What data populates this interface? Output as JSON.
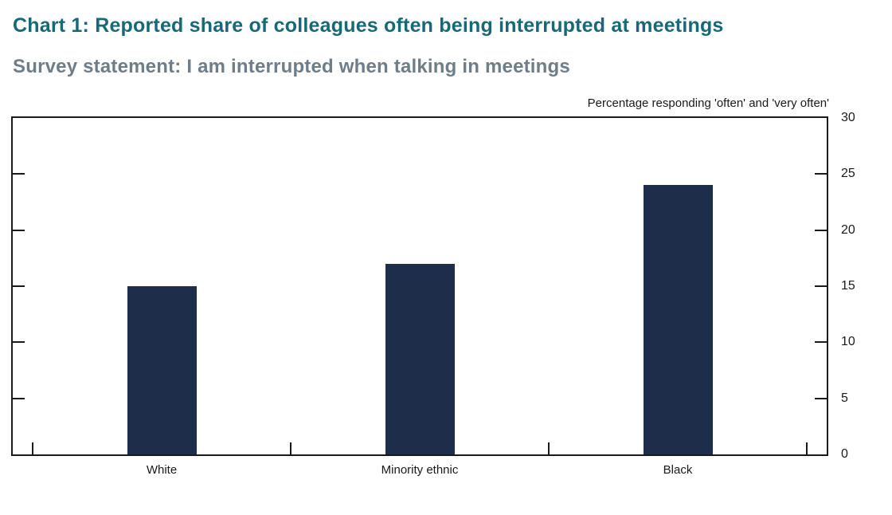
{
  "header": {
    "title": "Chart 1: Reported share of colleagues often being interrupted at meetings",
    "subtitle": "Survey statement: I am interrupted when talking in meetings"
  },
  "colors": {
    "title": "#176977",
    "subtitle": "#6f7d88",
    "bar": "#1d2d4a",
    "axis": "#1a1a1a"
  },
  "chart_data": {
    "type": "bar",
    "title": "Chart 1: Reported share of colleagues often being interrupted at meetings",
    "subtitle": "Survey statement: I am interrupted when talking in meetings",
    "axis_note": "Percentage responding 'often' and 'very often'",
    "categories": [
      "White",
      "Minority ethnic",
      "Black"
    ],
    "values": [
      15,
      17,
      24
    ],
    "xlabel": "",
    "ylabel": "Percentage responding 'often' and 'very often'",
    "ylim": [
      0,
      30
    ],
    "yticks": [
      0,
      5,
      10,
      15,
      20,
      25,
      30
    ],
    "yaxis_side": "right",
    "grid": false,
    "legend": "none",
    "bar_color": "#1d2d4a"
  }
}
